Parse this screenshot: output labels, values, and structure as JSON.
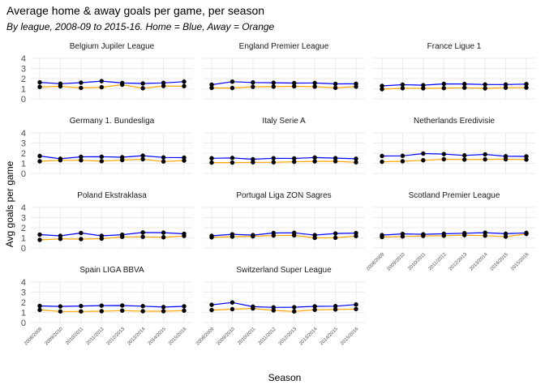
{
  "chart_data": {
    "type": "line",
    "title": "Average home & away goals per game, per season",
    "subtitle": "By league, 2008-09 to 2015-16. Home = Blue, Away = Orange",
    "xlabel": "Season",
    "ylabel": "Avg goals per game",
    "ylim": [
      0,
      4
    ],
    "y_ticks": [
      0,
      1,
      2,
      3,
      4
    ],
    "grid": true,
    "series_colors": {
      "Home": "#0000ff",
      "Away": "#ffa500"
    },
    "x": [
      "2008/2009",
      "2009/2010",
      "2010/2011",
      "2011/2012",
      "2012/2013",
      "2013/2014",
      "2014/2015",
      "2015/2016"
    ],
    "panels": [
      {
        "league": "Belgium Jupiler League",
        "home": [
          1.63,
          1.5,
          1.6,
          1.75,
          1.57,
          1.52,
          1.58,
          1.7
        ],
        "away": [
          1.18,
          1.24,
          1.08,
          1.15,
          1.4,
          1.05,
          1.27,
          1.26
        ]
      },
      {
        "league": "England Premier League",
        "home": [
          1.4,
          1.7,
          1.62,
          1.59,
          1.56,
          1.57,
          1.48,
          1.49
        ],
        "away": [
          1.08,
          1.07,
          1.19,
          1.21,
          1.24,
          1.21,
          1.09,
          1.21
        ]
      },
      {
        "league": "France Ligue 1",
        "home": [
          1.28,
          1.4,
          1.35,
          1.48,
          1.47,
          1.42,
          1.42,
          1.46
        ],
        "away": [
          0.96,
          1.05,
          1.04,
          1.06,
          1.1,
          1.04,
          1.1,
          1.11
        ]
      },
      {
        "league": "Germany 1. Bundesliga",
        "home": [
          1.72,
          1.45,
          1.64,
          1.65,
          1.6,
          1.75,
          1.58,
          1.56
        ],
        "away": [
          1.2,
          1.3,
          1.3,
          1.21,
          1.32,
          1.4,
          1.18,
          1.27
        ]
      },
      {
        "league": "Italy Serie A",
        "home": [
          1.5,
          1.53,
          1.4,
          1.5,
          1.48,
          1.57,
          1.51,
          1.45
        ],
        "away": [
          1.07,
          1.07,
          1.1,
          1.1,
          1.15,
          1.19,
          1.2,
          1.1
        ]
      },
      {
        "league": "Netherlands Eredivisie",
        "home": [
          1.72,
          1.74,
          1.96,
          1.91,
          1.78,
          1.88,
          1.7,
          1.68
        ],
        "away": [
          1.15,
          1.2,
          1.3,
          1.4,
          1.37,
          1.39,
          1.4,
          1.37
        ]
      },
      {
        "league": "Poland Ekstraklasa",
        "home": [
          1.32,
          1.2,
          1.48,
          1.2,
          1.31,
          1.53,
          1.51,
          1.4
        ],
        "away": [
          0.8,
          0.9,
          0.88,
          0.92,
          1.1,
          1.1,
          1.06,
          1.19
        ]
      },
      {
        "league": "Portugal Liga ZON Sagres",
        "home": [
          1.2,
          1.35,
          1.27,
          1.48,
          1.5,
          1.27,
          1.43,
          1.47
        ],
        "away": [
          1.05,
          1.12,
          1.15,
          1.23,
          1.25,
          1.0,
          1.01,
          1.18
        ]
      },
      {
        "league": "Scotland Premier League",
        "home": [
          1.27,
          1.39,
          1.35,
          1.4,
          1.46,
          1.51,
          1.41,
          1.49
        ],
        "away": [
          1.08,
          1.14,
          1.19,
          1.21,
          1.27,
          1.22,
          1.12,
          1.39
        ]
      },
      {
        "league": "Spain LIGA BBVA",
        "home": [
          1.64,
          1.59,
          1.63,
          1.67,
          1.68,
          1.62,
          1.53,
          1.6
        ],
        "away": [
          1.25,
          1.1,
          1.1,
          1.12,
          1.18,
          1.12,
          1.12,
          1.18
        ]
      },
      {
        "league": "Switzerland Super League",
        "home": [
          1.75,
          1.98,
          1.57,
          1.5,
          1.51,
          1.6,
          1.62,
          1.78
        ],
        "away": [
          1.23,
          1.32,
          1.39,
          1.2,
          1.1,
          1.26,
          1.29,
          1.33
        ]
      }
    ]
  }
}
